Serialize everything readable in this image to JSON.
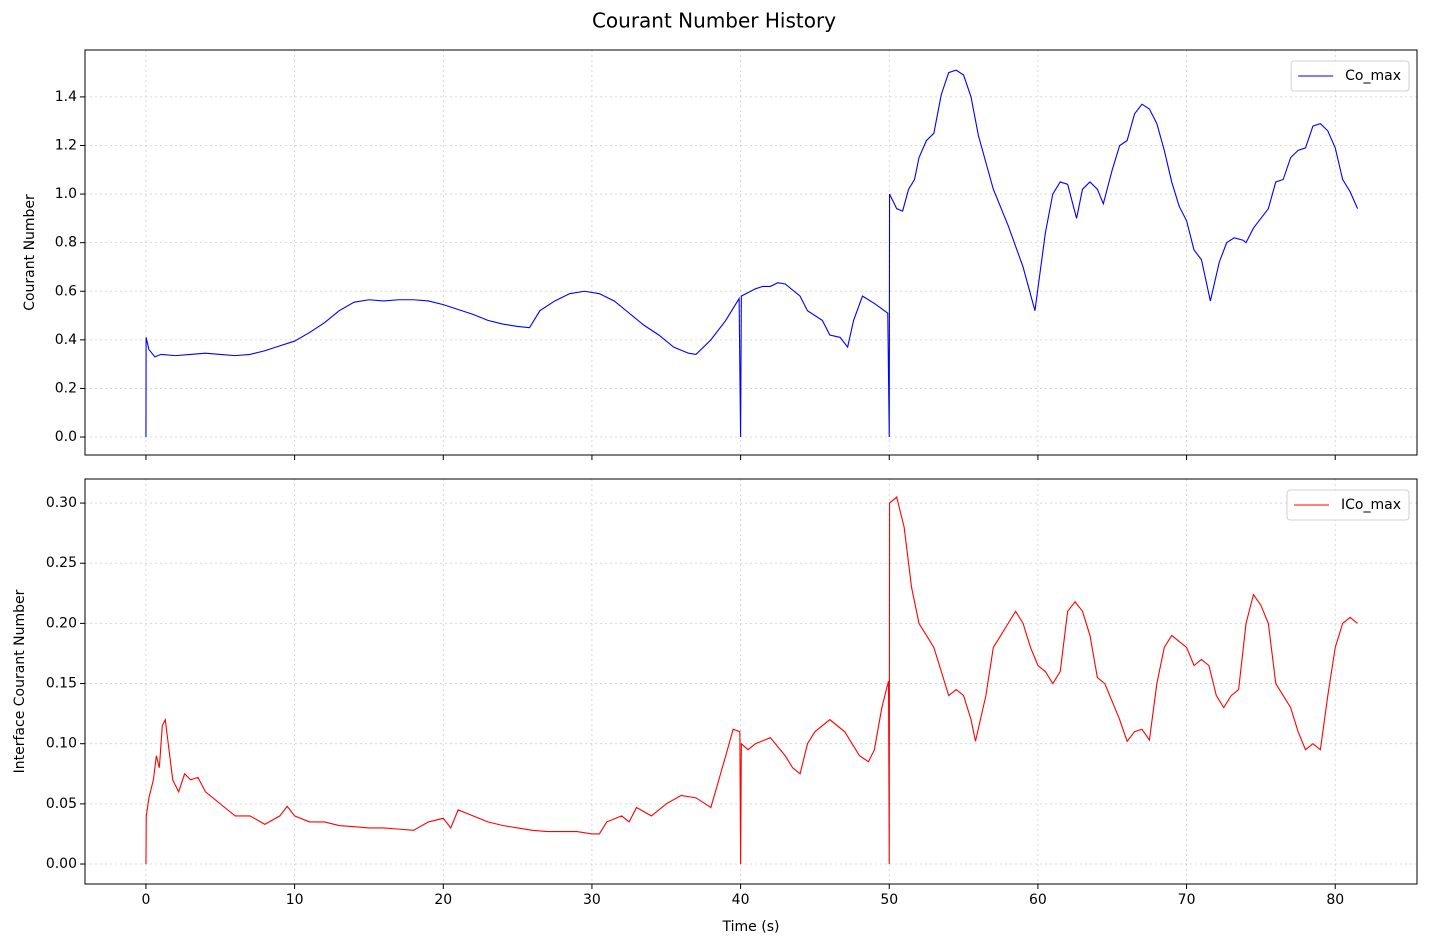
{
  "title": "Courant Number History",
  "chart_data": [
    {
      "type": "line",
      "ylabel": "Courant Number",
      "legend": "upper right",
      "grid": true,
      "xlim": [
        -4.1,
        85.5
      ],
      "ylim": [
        -0.074,
        1.593
      ],
      "xticks": [
        0,
        10,
        20,
        30,
        40,
        50,
        60,
        70,
        80
      ],
      "yticks": [
        {
          "value": 0,
          "label": "0.0"
        },
        0.2,
        0.4,
        0.6,
        0.8,
        {
          "value": 1,
          "label": "1.0"
        },
        1.2,
        1.4
      ],
      "x": [
        0,
        0.01,
        0.2,
        0.6,
        1,
        2,
        3,
        4,
        5,
        6,
        7,
        8,
        9,
        10,
        11,
        12,
        13,
        14,
        15,
        16,
        17,
        18,
        19,
        20,
        21,
        22,
        23,
        24,
        25,
        25.8,
        26.5,
        27.5,
        28.5,
        29.5,
        30.5,
        31.5,
        32.5,
        33.5,
        34.5,
        35.5,
        36.5,
        37,
        38,
        39,
        39.9,
        40,
        40.05,
        41,
        41.5,
        42,
        42.5,
        43,
        44,
        44.5,
        45.5,
        46,
        46.7,
        47.2,
        47.6,
        48.2,
        49,
        49.9,
        50,
        50.02,
        50.5,
        50.9,
        51.3,
        51.7,
        52,
        52.5,
        53,
        53.5,
        54,
        54.5,
        55,
        55.5,
        56,
        57,
        58,
        59,
        59.8,
        60.5,
        61,
        61.5,
        62,
        62.6,
        63,
        63.5,
        64,
        64.4,
        65,
        65.5,
        66,
        66.5,
        67,
        67.5,
        68,
        68.5,
        69,
        69.5,
        70,
        70.5,
        71,
        71.6,
        72.2,
        72.7,
        73.2,
        73.8,
        74,
        74.5,
        75.5,
        76,
        76.5,
        77,
        77.5,
        78,
        78.5,
        79,
        79.5,
        80,
        80.5,
        81,
        81.5
      ],
      "series": [
        {
          "name": "Co_max",
          "color": "#0000ff",
          "values": [
            0,
            0.41,
            0.36,
            0.33,
            0.34,
            0.335,
            0.34,
            0.345,
            0.34,
            0.335,
            0.34,
            0.355,
            0.375,
            0.395,
            0.43,
            0.47,
            0.52,
            0.555,
            0.565,
            0.56,
            0.565,
            0.565,
            0.56,
            0.545,
            0.525,
            0.505,
            0.48,
            0.465,
            0.455,
            0.45,
            0.52,
            0.56,
            0.59,
            0.6,
            0.59,
            0.56,
            0.51,
            0.46,
            0.42,
            0.37,
            0.345,
            0.34,
            0.4,
            0.48,
            0.57,
            0,
            0.58,
            0.61,
            0.62,
            0.62,
            0.635,
            0.63,
            0.58,
            0.52,
            0.48,
            0.42,
            0.41,
            0.37,
            0.48,
            0.58,
            0.55,
            0.51,
            0,
            1.0,
            0.94,
            0.93,
            1.02,
            1.06,
            1.15,
            1.22,
            1.25,
            1.41,
            1.5,
            1.51,
            1.49,
            1.4,
            1.24,
            1.02,
            0.87,
            0.7,
            0.52,
            0.84,
            1.0,
            1.05,
            1.04,
            0.9,
            1.02,
            1.05,
            1.02,
            0.96,
            1.1,
            1.2,
            1.22,
            1.33,
            1.37,
            1.35,
            1.29,
            1.18,
            1.05,
            0.95,
            0.89,
            0.77,
            0.73,
            0.56,
            0.72,
            0.8,
            0.82,
            0.81,
            0.8,
            0.86,
            0.94,
            1.05,
            1.06,
            1.15,
            1.18,
            1.19,
            1.28,
            1.29,
            1.26,
            1.19,
            1.06,
            1.01,
            0.94
          ]
        }
      ]
    },
    {
      "type": "line",
      "xlabel": "Time (s)",
      "ylabel": "Interface Courant Number",
      "legend": "upper right",
      "grid": true,
      "xlim": [
        -4.1,
        85.5
      ],
      "ylim": [
        -0.0166,
        0.32
      ],
      "xticks": [
        0,
        10,
        20,
        30,
        40,
        50,
        60,
        70,
        80
      ],
      "yticks": [
        {
          "value": 0,
          "label": "0.00"
        },
        0.05,
        {
          "value": 0.1,
          "label": "0.10"
        },
        0.15,
        {
          "value": 0.2,
          "label": "0.20"
        },
        0.25,
        {
          "value": 0.3,
          "label": "0.30"
        }
      ],
      "x": [
        0,
        0.02,
        0.2,
        0.5,
        0.7,
        0.9,
        1.1,
        1.3,
        1.5,
        1.8,
        2.2,
        2.6,
        3,
        3.5,
        4,
        5,
        5.5,
        6,
        7,
        8,
        9,
        9.5,
        10,
        11,
        12,
        13,
        14,
        15,
        16,
        17,
        18,
        19,
        20,
        20.5,
        21,
        22,
        23,
        24,
        25,
        26,
        27,
        28,
        29,
        30,
        30.5,
        31,
        32,
        32.5,
        33,
        34,
        35,
        36,
        37,
        38,
        39,
        39.5,
        39.95,
        40,
        40.05,
        40.5,
        41,
        42,
        43,
        43.5,
        44,
        44.5,
        45,
        46,
        47,
        47.5,
        48,
        48.6,
        49,
        49.5,
        49.95,
        50,
        50.02,
        50.5,
        51,
        51.5,
        52,
        53,
        53.5,
        54,
        54.5,
        55,
        55.5,
        55.8,
        56.5,
        57,
        58,
        58.5,
        59,
        59.5,
        60,
        60.5,
        61,
        61.5,
        62,
        62.5,
        63,
        63.5,
        64,
        64.5,
        65.5,
        66,
        66.5,
        67,
        67.5,
        68,
        68.5,
        69,
        70,
        70.5,
        71,
        71.5,
        72,
        72.5,
        73,
        73.5,
        74,
        74.5,
        75,
        75.5,
        76,
        77,
        77.5,
        78,
        78.5,
        79,
        79.5,
        80,
        80.5,
        81,
        81.5
      ],
      "series": [
        {
          "name": "ICo_max",
          "color": "#ff0000",
          "values": [
            0,
            0.04,
            0.055,
            0.07,
            0.09,
            0.08,
            0.115,
            0.12,
            0.1,
            0.07,
            0.06,
            0.075,
            0.07,
            0.072,
            0.06,
            0.05,
            0.045,
            0.04,
            0.04,
            0.033,
            0.04,
            0.048,
            0.04,
            0.035,
            0.035,
            0.032,
            0.031,
            0.03,
            0.03,
            0.029,
            0.028,
            0.035,
            0.038,
            0.03,
            0.045,
            0.04,
            0.035,
            0.032,
            0.03,
            0.028,
            0.027,
            0.027,
            0.027,
            0.025,
            0.025,
            0.035,
            0.04,
            0.035,
            0.047,
            0.04,
            0.05,
            0.057,
            0.055,
            0.047,
            0.09,
            0.112,
            0.11,
            0,
            0.1,
            0.095,
            0.1,
            0.105,
            0.09,
            0.08,
            0.075,
            0.1,
            0.11,
            0.12,
            0.11,
            0.1,
            0.09,
            0.085,
            0.095,
            0.13,
            0.152,
            0,
            0.3,
            0.305,
            0.28,
            0.23,
            0.2,
            0.18,
            0.16,
            0.14,
            0.145,
            0.14,
            0.12,
            0.102,
            0.14,
            0.18,
            0.2,
            0.21,
            0.2,
            0.18,
            0.165,
            0.16,
            0.15,
            0.16,
            0.21,
            0.218,
            0.21,
            0.19,
            0.155,
            0.15,
            0.12,
            0.102,
            0.11,
            0.112,
            0.103,
            0.15,
            0.18,
            0.19,
            0.18,
            0.165,
            0.17,
            0.165,
            0.14,
            0.13,
            0.14,
            0.145,
            0.2,
            0.224,
            0.215,
            0.2,
            0.15,
            0.13,
            0.11,
            0.095,
            0.1,
            0.095,
            0.14,
            0.18,
            0.2,
            0.205,
            0.2
          ]
        }
      ]
    }
  ]
}
